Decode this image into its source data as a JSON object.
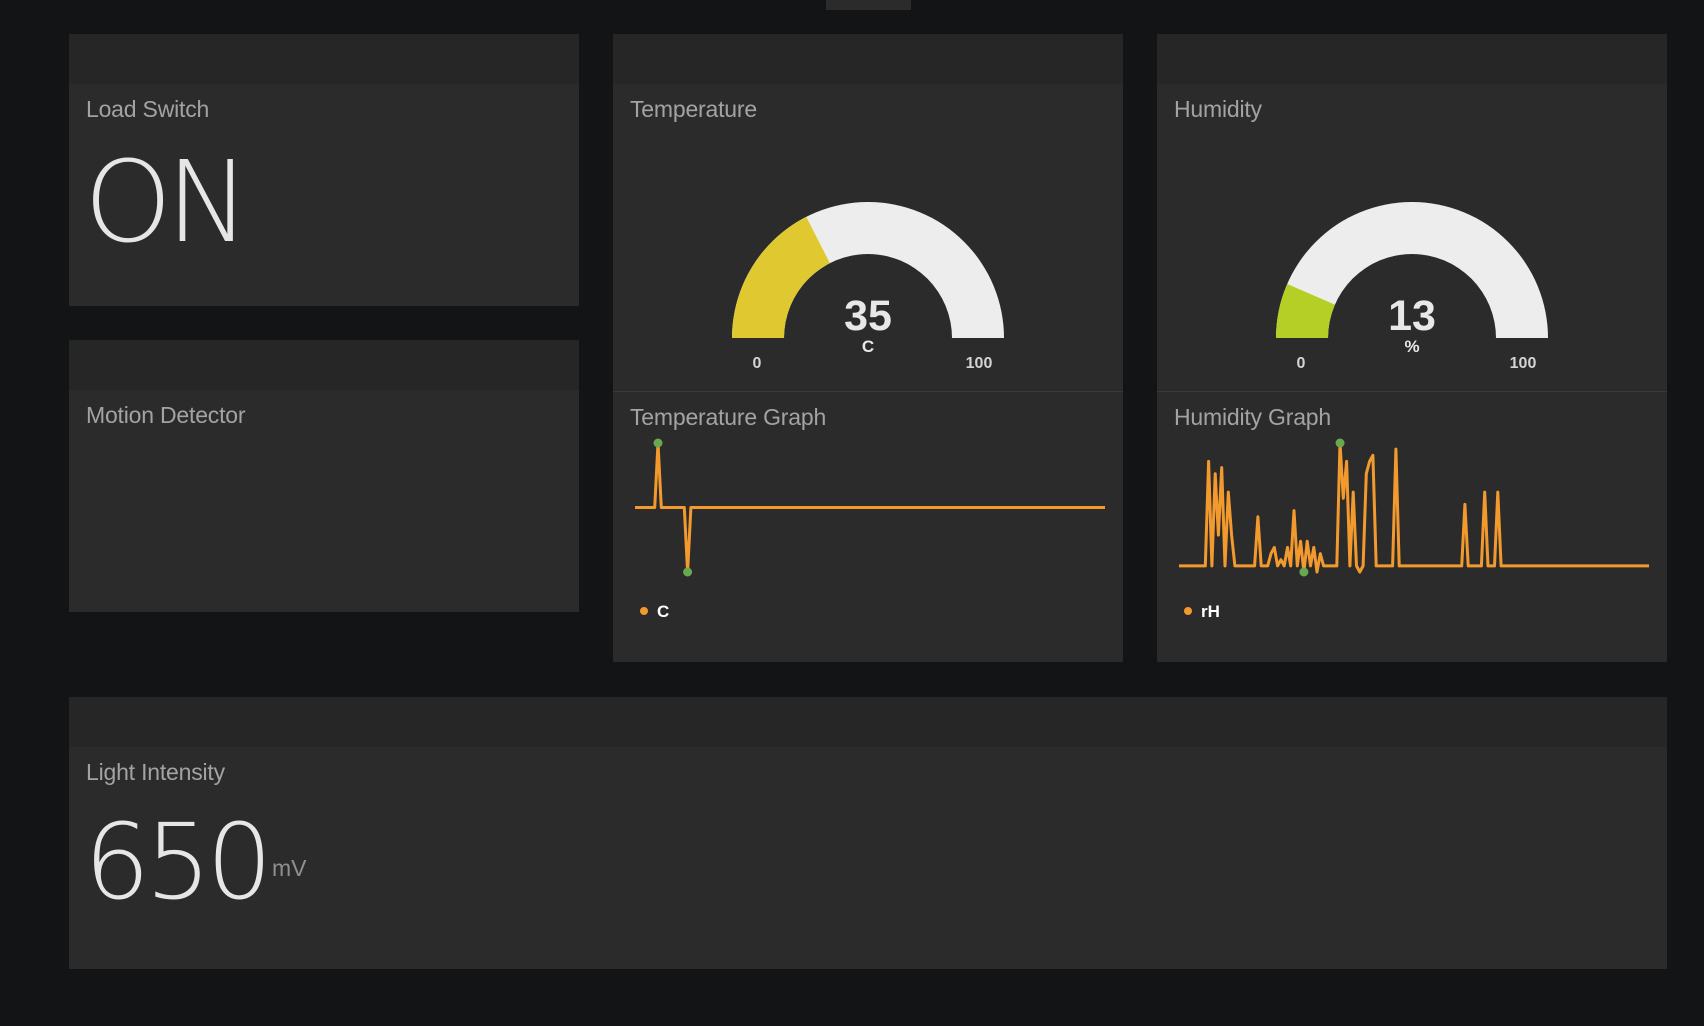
{
  "colors": {
    "background": "#121416",
    "pane": "#2b2b2b",
    "gauge_track": "#ededed",
    "temperature_fill": "#e0c930",
    "humidity_fill": "#b6cf26",
    "sparkline": "#f29a2e",
    "sparkline_marker": "#6aa84f"
  },
  "load_switch": {
    "title": "Load Switch",
    "value": "ON"
  },
  "motion_detector": {
    "title": "Motion Detector"
  },
  "temperature": {
    "title": "Temperature",
    "value": "35",
    "unit": "C",
    "min": "0",
    "max": "100",
    "fraction": 0.35
  },
  "humidity": {
    "title": "Humidity",
    "value": "13",
    "unit": "%",
    "min": "0",
    "max": "100",
    "fraction": 0.13
  },
  "temperature_graph": {
    "title": "Temperature Graph",
    "legend": "C",
    "values": [
      35,
      35,
      35,
      35,
      35,
      35,
      35,
      37,
      35,
      35,
      35,
      35,
      35,
      35,
      35,
      35,
      33,
      35,
      35,
      35,
      35,
      35,
      35,
      35,
      35,
      35,
      35,
      35,
      35,
      35,
      35,
      35,
      35,
      35,
      35,
      35,
      35,
      35,
      35,
      35,
      35,
      35,
      35,
      35,
      35,
      35,
      35,
      35,
      35,
      35,
      35,
      35,
      35,
      35,
      35,
      35,
      35,
      35,
      35,
      35,
      35,
      35,
      35,
      35,
      35,
      35,
      35,
      35,
      35,
      35,
      35,
      35,
      35,
      35,
      35,
      35,
      35,
      35,
      35,
      35,
      35,
      35,
      35,
      35,
      35,
      35,
      35,
      35,
      35,
      35,
      35,
      35,
      35,
      35,
      35,
      35,
      35,
      35,
      35,
      35,
      35,
      35,
      35,
      35,
      35,
      35,
      35,
      35,
      35,
      35,
      35,
      35,
      35,
      35,
      35,
      35,
      35,
      35,
      35,
      35,
      35,
      35,
      35,
      35,
      35,
      35,
      35,
      35,
      35,
      35,
      35,
      35,
      35,
      35,
      35,
      35,
      35,
      35,
      35,
      35,
      35,
      35,
      35,
      35
    ]
  },
  "humidity_graph": {
    "title": "Humidity Graph",
    "legend": "rH",
    "values": [
      13,
      13,
      13,
      13,
      13,
      13,
      13,
      13,
      13,
      30,
      13,
      28,
      18,
      29,
      13,
      25,
      18,
      13,
      13,
      13,
      13,
      13,
      13,
      13,
      21,
      13,
      13,
      13,
      15,
      16,
      13,
      14,
      13,
      16,
      13,
      22,
      13,
      17,
      12,
      17,
      13,
      16,
      12,
      15,
      13,
      13,
      13,
      13,
      13,
      33,
      24,
      30,
      13,
      25,
      13,
      12,
      13,
      28,
      30,
      31,
      13,
      13,
      13,
      13,
      13,
      13,
      32,
      13,
      13,
      13,
      13,
      13,
      13,
      13,
      13,
      13,
      13,
      13,
      13,
      13,
      13,
      13,
      13,
      13,
      13,
      13,
      13,
      23,
      13,
      13,
      13,
      13,
      13,
      25,
      13,
      13,
      13,
      25,
      13,
      13,
      13,
      13,
      13,
      13,
      13,
      13,
      13,
      13,
      13,
      13,
      13,
      13,
      13,
      13,
      13,
      13,
      13,
      13,
      13,
      13,
      13,
      13,
      13,
      13,
      13,
      13,
      13,
      13,
      13,
      13,
      13,
      13,
      13,
      13,
      13,
      13,
      13,
      13,
      13,
      13,
      13,
      13,
      13,
      13
    ]
  },
  "light_intensity": {
    "title": "Light Intensity",
    "value": "650",
    "unit": "mV"
  }
}
